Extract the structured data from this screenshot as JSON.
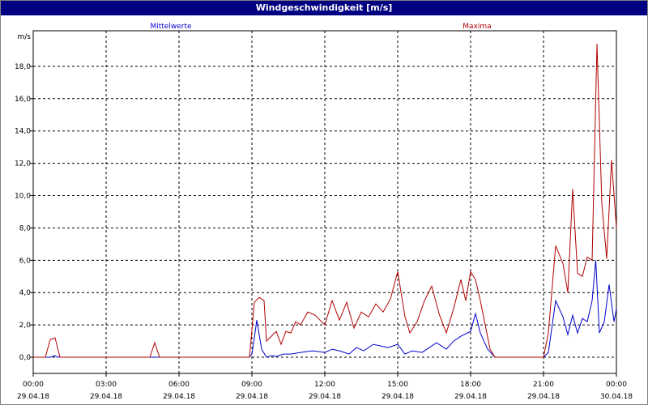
{
  "window": {
    "title": "Windgeschwindigkeit [m/s]"
  },
  "chart_data": {
    "type": "line",
    "title": "Windgeschwindigkeit [m/s]",
    "ylabel": "m/s",
    "ylim": [
      -1,
      20.2
    ],
    "xlim": [
      0,
      24
    ],
    "grid": true,
    "colors": {
      "Mittelwerte": "#0000cc",
      "Maxima": "#b00000"
    },
    "y_ticks": [
      "0,0",
      "2,0",
      "4,0",
      "6,0",
      "8,0",
      "10,0",
      "12,0",
      "14,0",
      "16,0",
      "18,0"
    ],
    "x_ticks": [
      {
        "time": "00:00",
        "date": "29.04.18"
      },
      {
        "time": "03:00",
        "date": "29.04.18"
      },
      {
        "time": "06:00",
        "date": "29.04.18"
      },
      {
        "time": "09:00",
        "date": "29.04.18"
      },
      {
        "time": "12:00",
        "date": "29.04.18"
      },
      {
        "time": "15:00",
        "date": "29.04.18"
      },
      {
        "time": "18:00",
        "date": "29.04.18"
      },
      {
        "time": "21:00",
        "date": "29.04.18"
      },
      {
        "time": "00:00",
        "date": "30.04.18"
      }
    ],
    "series": [
      {
        "name": "Mittelwerte",
        "points": [
          [
            0,
            0
          ],
          [
            0.5,
            0
          ],
          [
            0.7,
            0
          ],
          [
            0.9,
            0.1
          ],
          [
            1.0,
            0
          ],
          [
            2,
            0
          ],
          [
            4,
            0
          ],
          [
            5,
            0
          ],
          [
            6,
            0
          ],
          [
            8.9,
            0
          ],
          [
            9.0,
            0.2
          ],
          [
            9.1,
            1.2
          ],
          [
            9.2,
            2.3
          ],
          [
            9.4,
            0.5
          ],
          [
            9.6,
            0
          ],
          [
            9.8,
            0.1
          ],
          [
            10.0,
            0.05
          ],
          [
            10.3,
            0.2
          ],
          [
            10.6,
            0.2
          ],
          [
            11.0,
            0.3
          ],
          [
            11.5,
            0.4
          ],
          [
            12.0,
            0.3
          ],
          [
            12.3,
            0.5
          ],
          [
            12.6,
            0.4
          ],
          [
            13.0,
            0.2
          ],
          [
            13.3,
            0.6
          ],
          [
            13.6,
            0.4
          ],
          [
            14.0,
            0.8
          ],
          [
            14.3,
            0.7
          ],
          [
            14.6,
            0.6
          ],
          [
            15.0,
            0.8
          ],
          [
            15.3,
            0.2
          ],
          [
            15.6,
            0.4
          ],
          [
            16.0,
            0.3
          ],
          [
            16.3,
            0.6
          ],
          [
            16.6,
            0.9
          ],
          [
            17.0,
            0.5
          ],
          [
            17.3,
            1.0
          ],
          [
            17.6,
            1.3
          ],
          [
            18.0,
            1.6
          ],
          [
            18.2,
            2.7
          ],
          [
            18.4,
            1.5
          ],
          [
            18.7,
            0.5
          ],
          [
            19.0,
            0
          ],
          [
            20.0,
            0
          ],
          [
            21.0,
            0
          ],
          [
            21.2,
            0.3
          ],
          [
            21.5,
            3.5
          ],
          [
            21.8,
            2.5
          ],
          [
            22.0,
            1.4
          ],
          [
            22.2,
            2.6
          ],
          [
            22.4,
            1.5
          ],
          [
            22.6,
            2.4
          ],
          [
            22.8,
            2.2
          ],
          [
            23.0,
            3.5
          ],
          [
            23.15,
            6.0
          ],
          [
            23.3,
            1.5
          ],
          [
            23.5,
            2.2
          ],
          [
            23.7,
            4.5
          ],
          [
            23.9,
            2.2
          ],
          [
            24.0,
            3.0
          ]
        ]
      },
      {
        "name": "Maxima",
        "points": [
          [
            0,
            0
          ],
          [
            0.5,
            0
          ],
          [
            0.7,
            1.1
          ],
          [
            0.9,
            1.2
          ],
          [
            1.1,
            0
          ],
          [
            2,
            0
          ],
          [
            4.8,
            0
          ],
          [
            5.0,
            0.9
          ],
          [
            5.2,
            0
          ],
          [
            7,
            0
          ],
          [
            8.9,
            0
          ],
          [
            9.1,
            3.4
          ],
          [
            9.3,
            3.7
          ],
          [
            9.5,
            3.5
          ],
          [
            9.6,
            1.0
          ],
          [
            9.8,
            1.3
          ],
          [
            10.0,
            1.6
          ],
          [
            10.2,
            0.8
          ],
          [
            10.4,
            1.6
          ],
          [
            10.6,
            1.5
          ],
          [
            10.8,
            2.2
          ],
          [
            11.0,
            2.0
          ],
          [
            11.3,
            2.8
          ],
          [
            11.6,
            2.6
          ],
          [
            12.0,
            2.0
          ],
          [
            12.3,
            3.5
          ],
          [
            12.6,
            2.3
          ],
          [
            12.9,
            3.4
          ],
          [
            13.2,
            1.8
          ],
          [
            13.5,
            2.8
          ],
          [
            13.8,
            2.5
          ],
          [
            14.1,
            3.3
          ],
          [
            14.4,
            2.8
          ],
          [
            14.7,
            3.6
          ],
          [
            15.0,
            5.3
          ],
          [
            15.3,
            2.5
          ],
          [
            15.5,
            1.5
          ],
          [
            15.8,
            2.2
          ],
          [
            16.1,
            3.5
          ],
          [
            16.4,
            4.4
          ],
          [
            16.7,
            2.7
          ],
          [
            17.0,
            1.5
          ],
          [
            17.3,
            3.0
          ],
          [
            17.6,
            4.8
          ],
          [
            17.8,
            3.5
          ],
          [
            18.0,
            5.3
          ],
          [
            18.2,
            4.8
          ],
          [
            18.4,
            3.5
          ],
          [
            18.6,
            2.0
          ],
          [
            18.8,
            0.5
          ],
          [
            19.0,
            0
          ],
          [
            21.0,
            0
          ],
          [
            21.2,
            1.5
          ],
          [
            21.5,
            6.9
          ],
          [
            21.8,
            5.8
          ],
          [
            22.0,
            4.0
          ],
          [
            22.2,
            10.4
          ],
          [
            22.4,
            5.2
          ],
          [
            22.6,
            5.0
          ],
          [
            22.8,
            6.2
          ],
          [
            23.0,
            6.0
          ],
          [
            23.2,
            19.4
          ],
          [
            23.4,
            9.5
          ],
          [
            23.6,
            6.1
          ],
          [
            23.8,
            12.2
          ],
          [
            24.0,
            8.0
          ]
        ]
      }
    ]
  }
}
